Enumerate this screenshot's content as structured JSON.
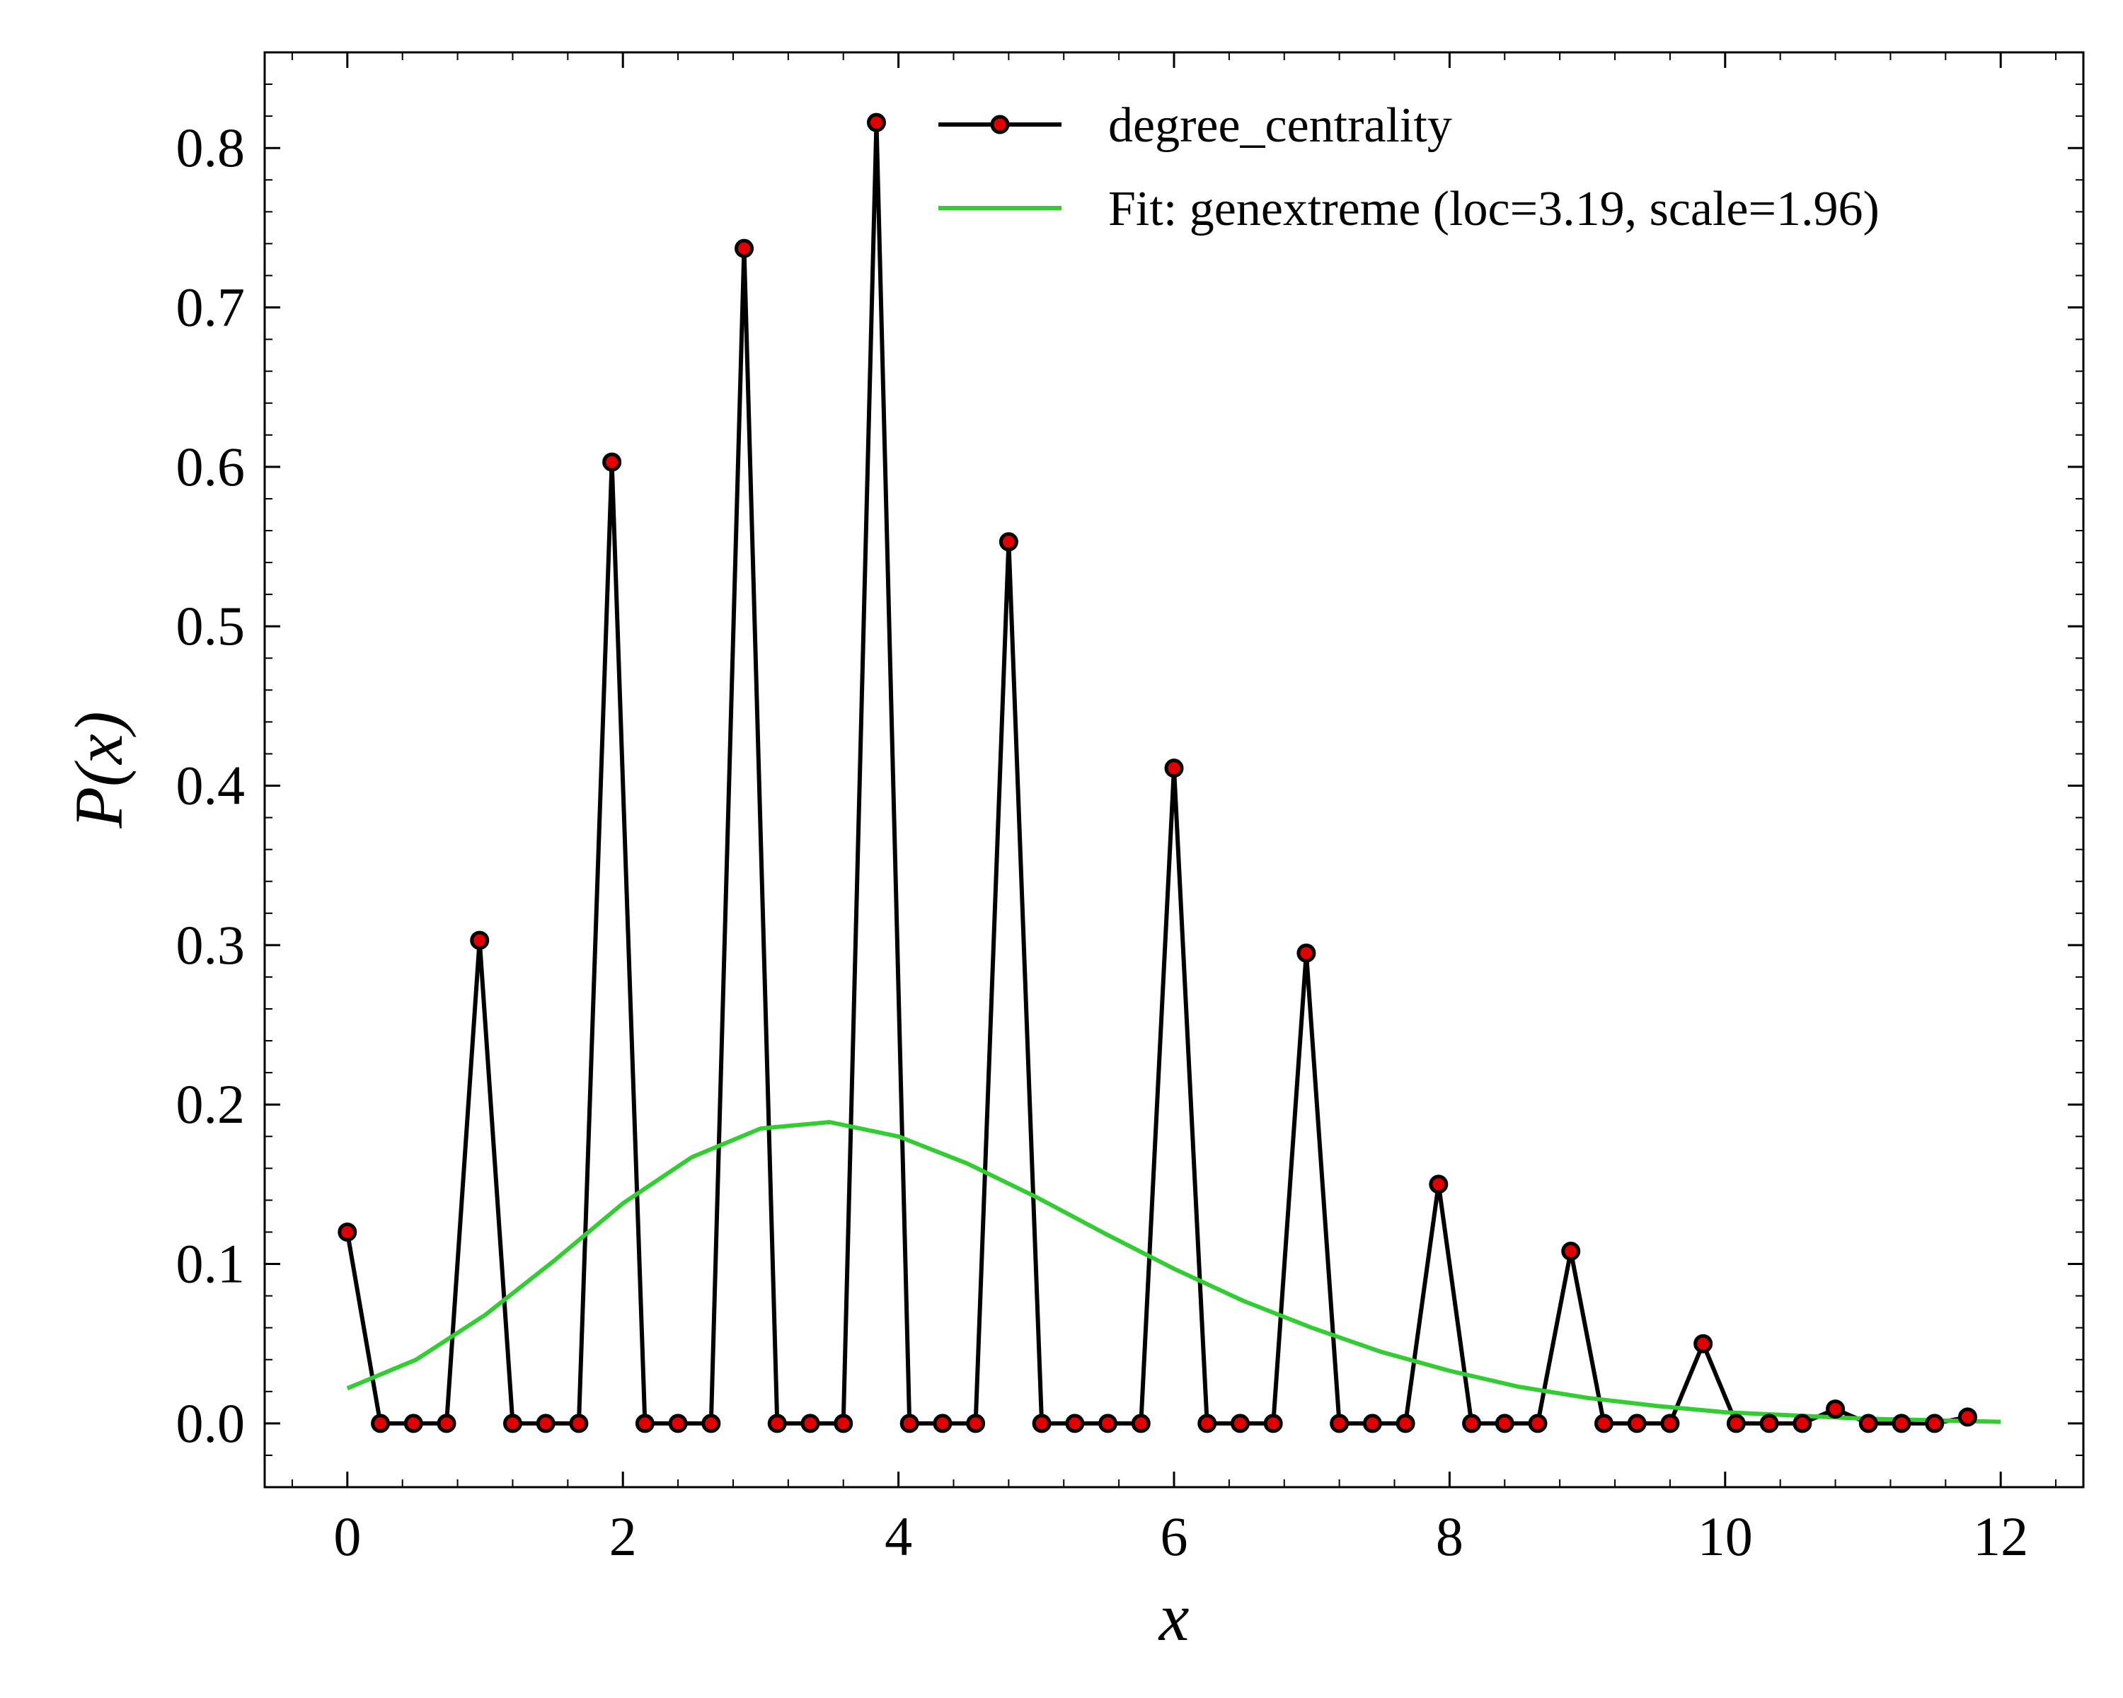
{
  "chart_data": {
    "type": "line",
    "title": "",
    "xlabel": "x",
    "ylabel": "P(x)",
    "xlim": [
      -0.6,
      12.6
    ],
    "ylim": [
      -0.04,
      0.86
    ],
    "x_ticks": [
      0,
      2,
      4,
      6,
      8,
      10,
      12
    ],
    "x_tick_labels": [
      "0",
      "2",
      "4",
      "6",
      "8",
      "10",
      "12"
    ],
    "y_ticks": [
      0.0,
      0.1,
      0.2,
      0.3,
      0.4,
      0.5,
      0.6,
      0.7,
      0.8
    ],
    "y_tick_labels": [
      "0.0",
      "0.1",
      "0.2",
      "0.3",
      "0.4",
      "0.5",
      "0.6",
      "0.7",
      "0.8"
    ],
    "grid": false,
    "legend_position": "top-right",
    "colors": {
      "data_line": "#000000",
      "marker_fill": "#e00000",
      "fit_line": "#33cc33"
    },
    "series": [
      {
        "name": "degree_centrality",
        "style": "line-with-markers",
        "x": [
          0,
          0.24,
          0.48,
          0.72,
          0.96,
          1.2,
          1.44,
          1.68,
          1.92,
          2.16,
          2.4,
          2.64,
          2.88,
          3.12,
          3.36,
          3.6,
          3.84,
          4.08,
          4.32,
          4.56,
          4.8,
          5.04,
          5.28,
          5.52,
          5.76,
          6.0,
          6.24,
          6.48,
          6.72,
          6.96,
          7.2,
          7.44,
          7.68,
          7.92,
          8.16,
          8.4,
          8.64,
          8.88,
          9.12,
          9.36,
          9.6,
          9.84,
          10.08,
          10.32,
          10.56,
          10.8,
          11.04,
          11.28,
          11.52,
          11.76
        ],
        "y": [
          0.12,
          0.0,
          0.0,
          0.0,
          0.303,
          0.0,
          0.0,
          0.0,
          0.603,
          0.0,
          0.0,
          0.0,
          0.737,
          0.0,
          0.0,
          0.0,
          0.816,
          0.0,
          0.0,
          0.0,
          0.553,
          0.0,
          0.0,
          0.0,
          0.0,
          0.411,
          0.0,
          0.0,
          0.0,
          0.295,
          0.0,
          0.0,
          0.0,
          0.15,
          0.0,
          0.0,
          0.0,
          0.108,
          0.0,
          0.0,
          0.0,
          0.05,
          0.0,
          0.0,
          0.0,
          0.009,
          0.0,
          0.0,
          0.0,
          0.004
        ]
      },
      {
        "name": "Fit: genextreme (loc=3.19, scale=1.96)",
        "style": "line",
        "x": [
          0,
          0.5,
          1,
          1.5,
          2,
          2.5,
          3,
          3.5,
          4,
          4.5,
          5,
          5.5,
          6,
          6.5,
          7,
          7.5,
          8,
          8.5,
          9,
          9.5,
          10,
          10.5,
          11,
          11.5,
          12
        ],
        "y": [
          0.022,
          0.04,
          0.068,
          0.102,
          0.138,
          0.167,
          0.185,
          0.189,
          0.18,
          0.163,
          0.142,
          0.119,
          0.097,
          0.077,
          0.06,
          0.045,
          0.033,
          0.023,
          0.016,
          0.011,
          0.007,
          0.005,
          0.003,
          0.002,
          0.001
        ]
      }
    ]
  }
}
